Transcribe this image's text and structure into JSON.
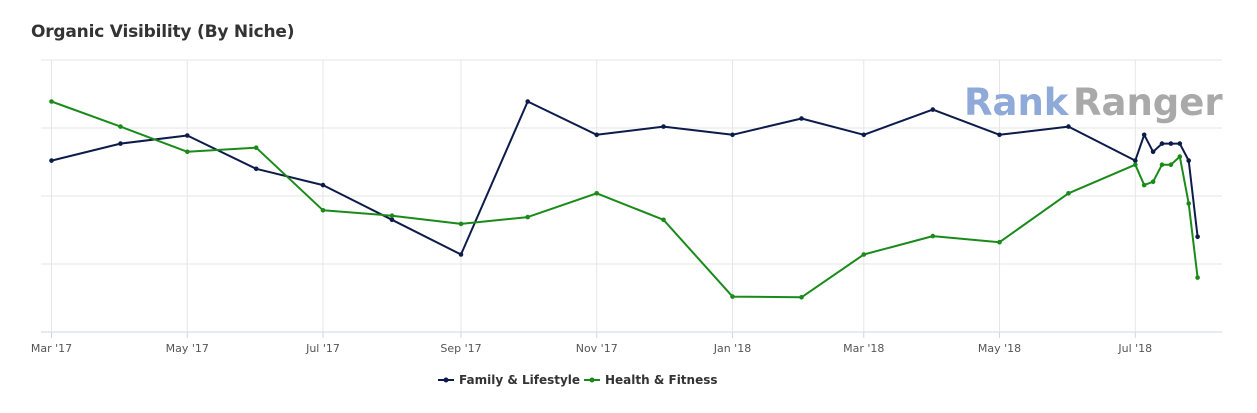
{
  "header": {
    "title": "Organic Visibility (By Niche)"
  },
  "watermark": {
    "part1": "Rank",
    "part2": "Ranger"
  },
  "chart_data": {
    "type": "line",
    "title": "Organic Visibility (By Niche)",
    "xlabel": "",
    "ylabel": "",
    "x_tick_labels": [
      "Mar '17",
      "May '17",
      "Jul '17",
      "Sep '17",
      "Nov '17",
      "Jan '18",
      "Mar '18",
      "May '18",
      "Jul '18"
    ],
    "ylim": [
      0,
      4
    ],
    "grid": true,
    "legend_placement": "bottom",
    "series": [
      {
        "name": "Family & Lifestyle",
        "color": "#0d1b4b",
        "points": [
          [
            "2017-03-01",
            2.52
          ],
          [
            "2017-04-01",
            2.77
          ],
          [
            "2017-05-01",
            2.89
          ],
          [
            "2017-06-01",
            2.4
          ],
          [
            "2017-07-01",
            2.16
          ],
          [
            "2017-08-01",
            1.65
          ],
          [
            "2017-09-01",
            1.14
          ],
          [
            "2017-10-01",
            3.39
          ],
          [
            "2017-11-01",
            2.9
          ],
          [
            "2017-12-01",
            3.02
          ],
          [
            "2018-01-01",
            2.9
          ],
          [
            "2018-02-01",
            3.14
          ],
          [
            "2018-03-01",
            2.9
          ],
          [
            "2018-04-01",
            3.27
          ],
          [
            "2018-05-01",
            2.9
          ],
          [
            "2018-06-01",
            3.02
          ],
          [
            "2018-07-01",
            2.52
          ],
          [
            "2018-07-05",
            2.9
          ],
          [
            "2018-07-09",
            2.65
          ],
          [
            "2018-07-13",
            2.77
          ],
          [
            "2018-07-17",
            2.77
          ],
          [
            "2018-07-21",
            2.77
          ],
          [
            "2018-07-25",
            2.52
          ],
          [
            "2018-07-29",
            1.4
          ]
        ]
      },
      {
        "name": "Health & Fitness",
        "color": "#1a8a1a",
        "points": [
          [
            "2017-03-01",
            3.39
          ],
          [
            "2017-04-01",
            3.02
          ],
          [
            "2017-05-01",
            2.65
          ],
          [
            "2017-06-01",
            2.71
          ],
          [
            "2017-07-01",
            1.79
          ],
          [
            "2017-08-01",
            1.71
          ],
          [
            "2017-09-01",
            1.59
          ],
          [
            "2017-10-01",
            1.69
          ],
          [
            "2017-11-01",
            2.04
          ],
          [
            "2017-12-01",
            1.65
          ],
          [
            "2018-01-01",
            0.52
          ],
          [
            "2018-02-01",
            0.51
          ],
          [
            "2018-03-01",
            1.14
          ],
          [
            "2018-04-01",
            1.41
          ],
          [
            "2018-05-01",
            1.32
          ],
          [
            "2018-06-01",
            2.04
          ],
          [
            "2018-07-01",
            2.46
          ],
          [
            "2018-07-05",
            2.16
          ],
          [
            "2018-07-09",
            2.21
          ],
          [
            "2018-07-13",
            2.46
          ],
          [
            "2018-07-17",
            2.46
          ],
          [
            "2018-07-21",
            2.58
          ],
          [
            "2018-07-25",
            1.89
          ],
          [
            "2018-07-29",
            0.8
          ]
        ]
      }
    ]
  }
}
